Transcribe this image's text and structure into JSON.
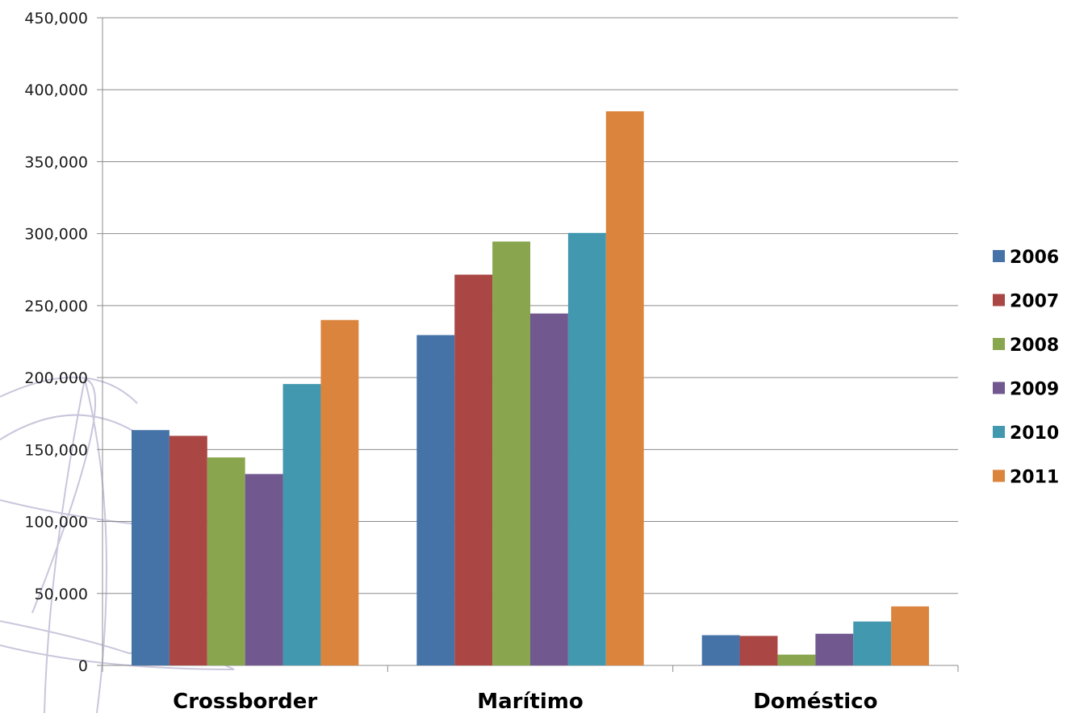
{
  "chart_data": {
    "type": "bar",
    "categories": [
      "Crossborder",
      "Marítimo",
      "Doméstico"
    ],
    "series": [
      {
        "name": "2006",
        "color": "#4572A7",
        "values": [
          163500,
          229500,
          21000
        ]
      },
      {
        "name": "2007",
        "color": "#AA4643",
        "values": [
          159500,
          271500,
          20500
        ]
      },
      {
        "name": "2008",
        "color": "#89A54E",
        "values": [
          144500,
          294500,
          7500
        ]
      },
      {
        "name": "2009",
        "color": "#71588F",
        "values": [
          133000,
          244500,
          22000
        ]
      },
      {
        "name": "2010",
        "color": "#4198AF",
        "values": [
          195500,
          300500,
          30500
        ]
      },
      {
        "name": "2011",
        "color": "#DB843D",
        "values": [
          240000,
          385000,
          41000
        ]
      }
    ],
    "title": "",
    "xlabel": "",
    "ylabel": "",
    "ylim": [
      0,
      450000
    ],
    "yticks": [
      0,
      50000,
      100000,
      150000,
      200000,
      250000,
      300000,
      350000,
      400000,
      450000
    ],
    "ytick_labels": [
      "0",
      "50,000",
      "100,000",
      "150,000",
      "200,000",
      "250,000",
      "300,000",
      "350,000",
      "400,000",
      "450,000"
    ],
    "grid": true,
    "legend_position": "right",
    "watermark": "globe-outline-watermark"
  }
}
